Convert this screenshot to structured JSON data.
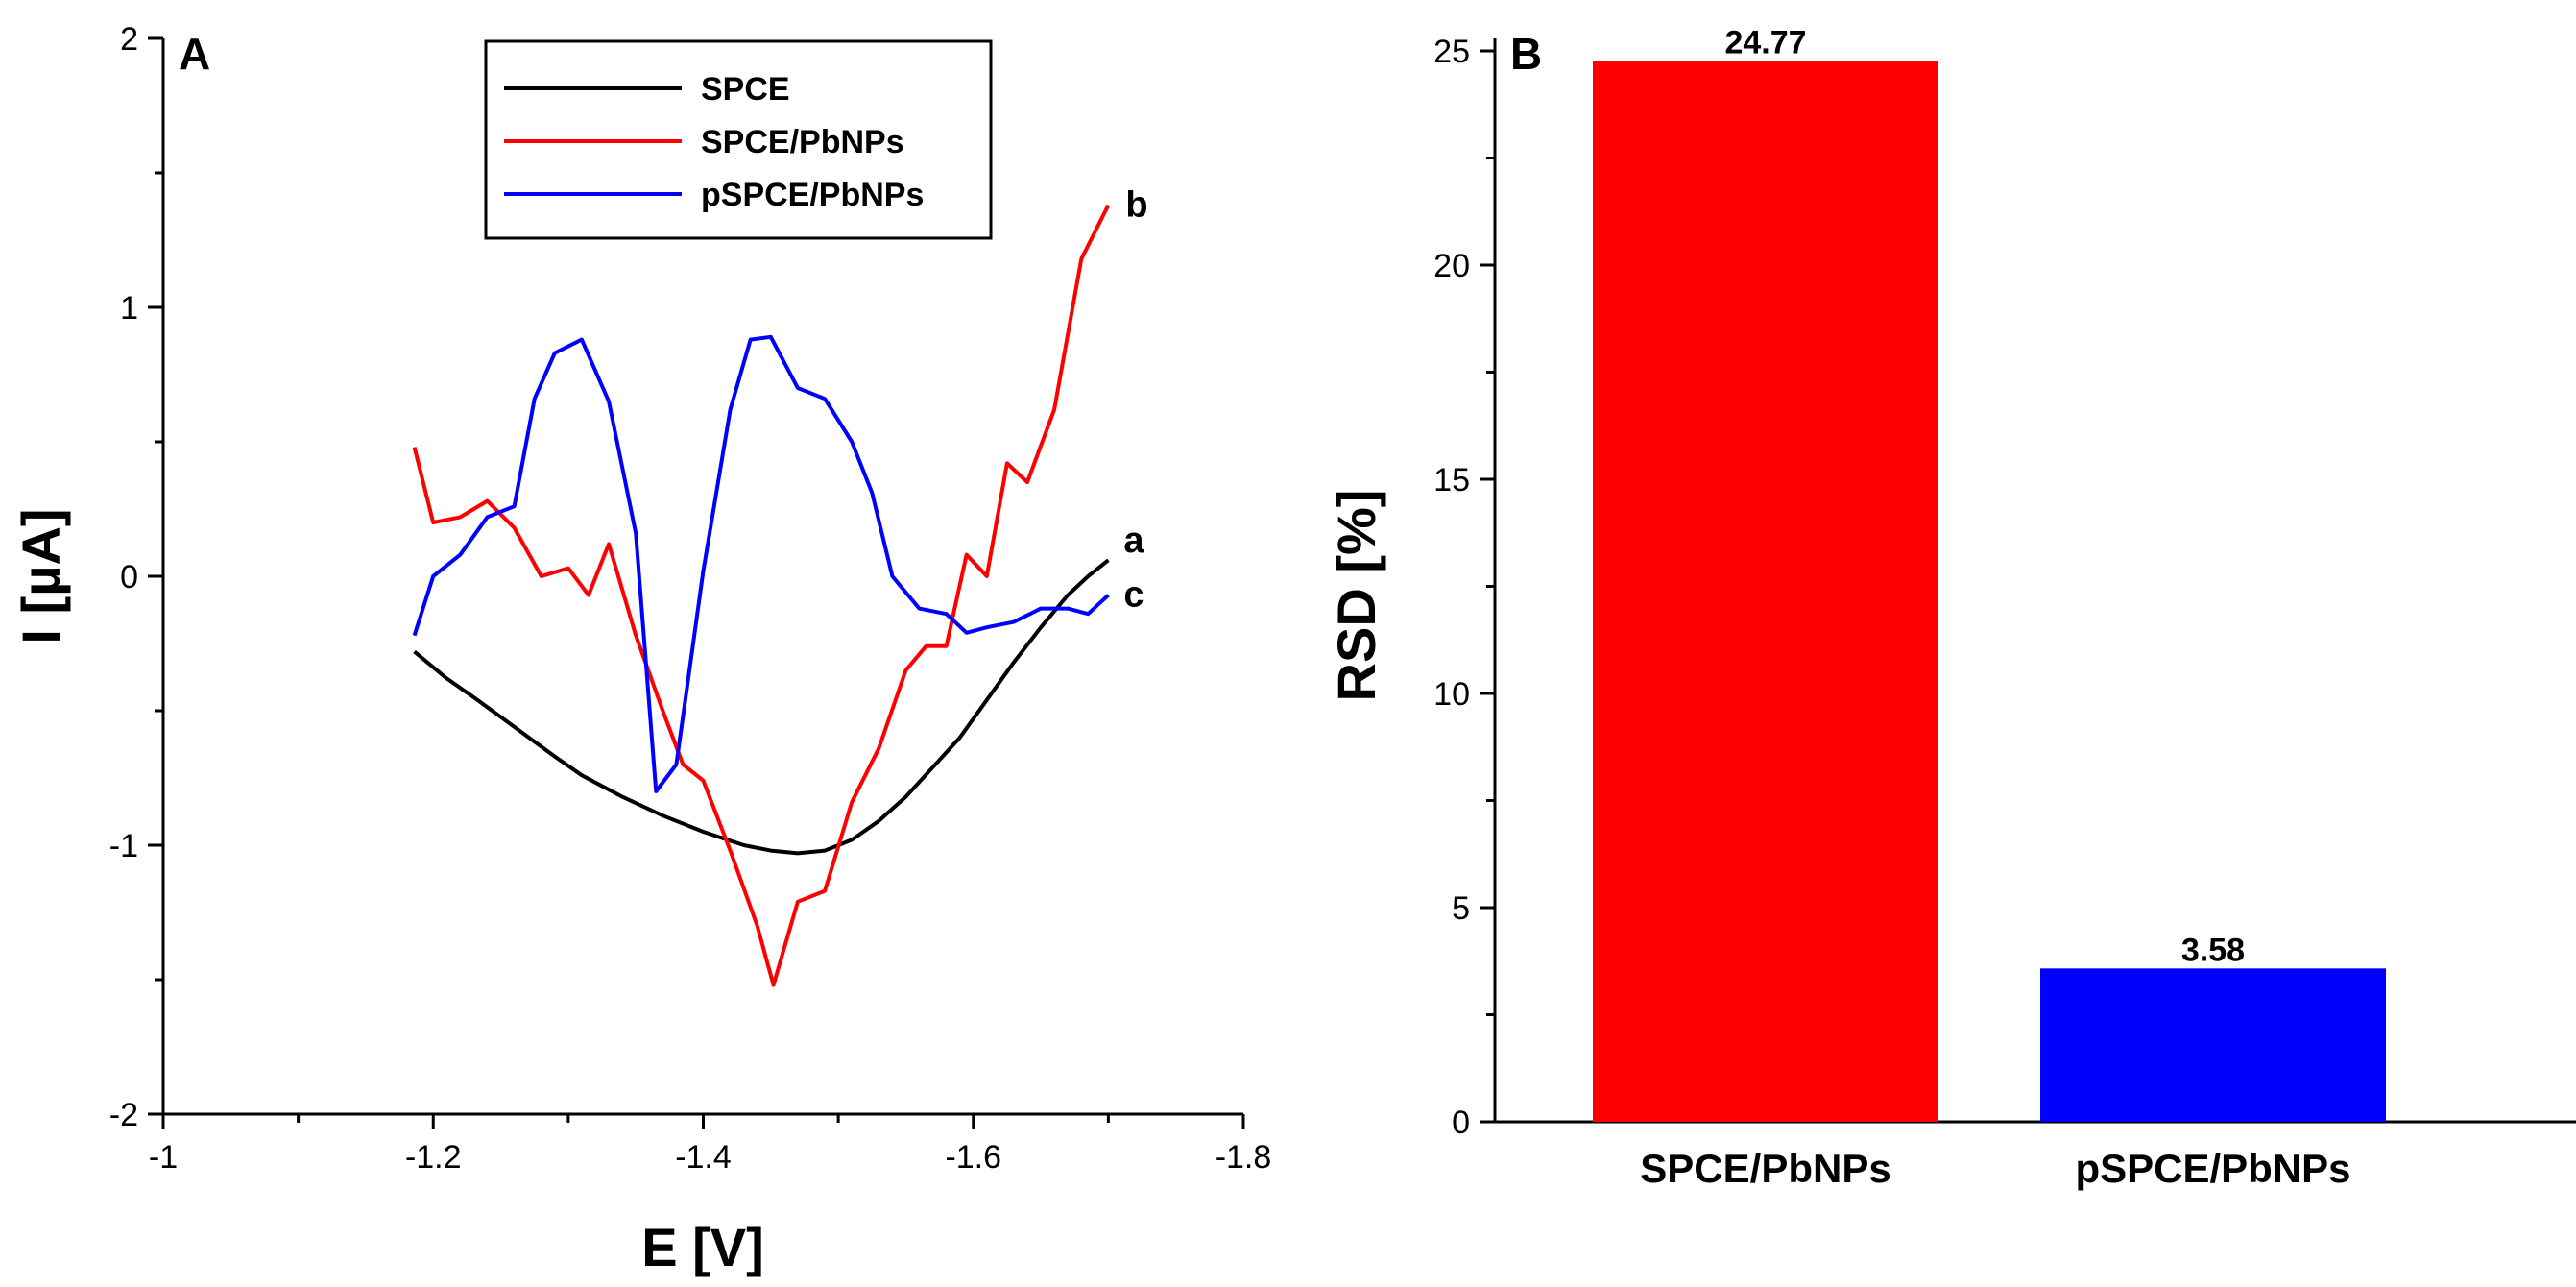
{
  "chart_data": [
    {
      "panel": "A",
      "type": "line",
      "xlabel": "E [V]",
      "ylabel": "I [µA]",
      "xlim": [
        -1.0,
        -1.8
      ],
      "ylim": [
        -2,
        2
      ],
      "x_ticks": [
        -1,
        -1.2,
        -1.4,
        -1.6,
        -1.8
      ],
      "x_tick_labels": [
        "-1",
        "-1.2",
        "-1.4",
        "-1.6",
        "-1.8"
      ],
      "y_ticks": [
        -2,
        -1,
        0,
        1,
        2
      ],
      "y_tick_labels": [
        "-2",
        "-1",
        "0",
        "1",
        "2"
      ],
      "legend": {
        "position": "top-center"
      },
      "series": [
        {
          "name": "SPCE",
          "label": "a",
          "color": "#000000",
          "points": [
            [
              -1.186,
              -0.28
            ],
            [
              -1.21,
              -0.38
            ],
            [
              -1.23,
              -0.45
            ],
            [
              -1.26,
              -0.56
            ],
            [
              -1.29,
              -0.67
            ],
            [
              -1.31,
              -0.74
            ],
            [
              -1.34,
              -0.82
            ],
            [
              -1.37,
              -0.89
            ],
            [
              -1.4,
              -0.95
            ],
            [
              -1.43,
              -1.0
            ],
            [
              -1.45,
              -1.02
            ],
            [
              -1.47,
              -1.03
            ],
            [
              -1.49,
              -1.02
            ],
            [
              -1.51,
              -0.98
            ],
            [
              -1.53,
              -0.91
            ],
            [
              -1.55,
              -0.82
            ],
            [
              -1.57,
              -0.71
            ],
            [
              -1.59,
              -0.6
            ],
            [
              -1.61,
              -0.46
            ],
            [
              -1.63,
              -0.32
            ],
            [
              -1.65,
              -0.19
            ],
            [
              -1.67,
              -0.07
            ],
            [
              -1.685,
              0.0
            ],
            [
              -1.7,
              0.06
            ]
          ]
        },
        {
          "name": "SPCE/PbNPs",
          "label": "b",
          "color": "#ff0000",
          "points": [
            [
              -1.186,
              0.48
            ],
            [
              -1.2,
              0.2
            ],
            [
              -1.22,
              0.22
            ],
            [
              -1.24,
              0.28
            ],
            [
              -1.26,
              0.18
            ],
            [
              -1.28,
              0.0
            ],
            [
              -1.3,
              0.03
            ],
            [
              -1.315,
              -0.07
            ],
            [
              -1.33,
              0.12
            ],
            [
              -1.35,
              -0.22
            ],
            [
              -1.37,
              -0.5
            ],
            [
              -1.385,
              -0.7
            ],
            [
              -1.4,
              -0.76
            ],
            [
              -1.42,
              -1.02
            ],
            [
              -1.44,
              -1.3
            ],
            [
              -1.452,
              -1.52
            ],
            [
              -1.47,
              -1.21
            ],
            [
              -1.49,
              -1.17
            ],
            [
              -1.51,
              -0.84
            ],
            [
              -1.53,
              -0.64
            ],
            [
              -1.55,
              -0.35
            ],
            [
              -1.565,
              -0.26
            ],
            [
              -1.58,
              -0.26
            ],
            [
              -1.595,
              0.08
            ],
            [
              -1.61,
              0.0
            ],
            [
              -1.625,
              0.42
            ],
            [
              -1.64,
              0.35
            ],
            [
              -1.66,
              0.62
            ],
            [
              -1.68,
              1.18
            ],
            [
              -1.7,
              1.38
            ]
          ]
        },
        {
          "name": "pSPCE/PbNPs",
          "label": "c",
          "color": "#0000ff",
          "points": [
            [
              -1.186,
              -0.22
            ],
            [
              -1.2,
              0.0
            ],
            [
              -1.22,
              0.08
            ],
            [
              -1.24,
              0.22
            ],
            [
              -1.26,
              0.26
            ],
            [
              -1.275,
              0.66
            ],
            [
              -1.29,
              0.83
            ],
            [
              -1.31,
              0.88
            ],
            [
              -1.33,
              0.65
            ],
            [
              -1.35,
              0.16
            ],
            [
              -1.365,
              -0.8
            ],
            [
              -1.38,
              -0.7
            ],
            [
              -1.4,
              0.02
            ],
            [
              -1.42,
              0.62
            ],
            [
              -1.435,
              0.88
            ],
            [
              -1.45,
              0.89
            ],
            [
              -1.47,
              0.7
            ],
            [
              -1.49,
              0.66
            ],
            [
              -1.51,
              0.5
            ],
            [
              -1.525,
              0.31
            ],
            [
              -1.54,
              0.0
            ],
            [
              -1.56,
              -0.12
            ],
            [
              -1.58,
              -0.14
            ],
            [
              -1.595,
              -0.21
            ],
            [
              -1.61,
              -0.19
            ],
            [
              -1.63,
              -0.17
            ],
            [
              -1.65,
              -0.12
            ],
            [
              -1.67,
              -0.12
            ],
            [
              -1.685,
              -0.14
            ],
            [
              -1.7,
              -0.07
            ]
          ]
        }
      ]
    },
    {
      "panel": "B",
      "type": "bar",
      "xlabel": "",
      "ylabel": "RSD [%]",
      "categories": [
        "SPCE/PbNPs",
        "pSPCE/PbNPs"
      ],
      "values": [
        24.77,
        3.58
      ],
      "value_labels": [
        "24.77",
        "3.58"
      ],
      "colors": [
        "#ff0000",
        "#0000ff"
      ],
      "ylim": [
        0,
        25
      ],
      "y_ticks": [
        0,
        5,
        10,
        15,
        20,
        25
      ],
      "y_tick_labels": [
        "0",
        "5",
        "10",
        "15",
        "20",
        "25"
      ]
    }
  ]
}
